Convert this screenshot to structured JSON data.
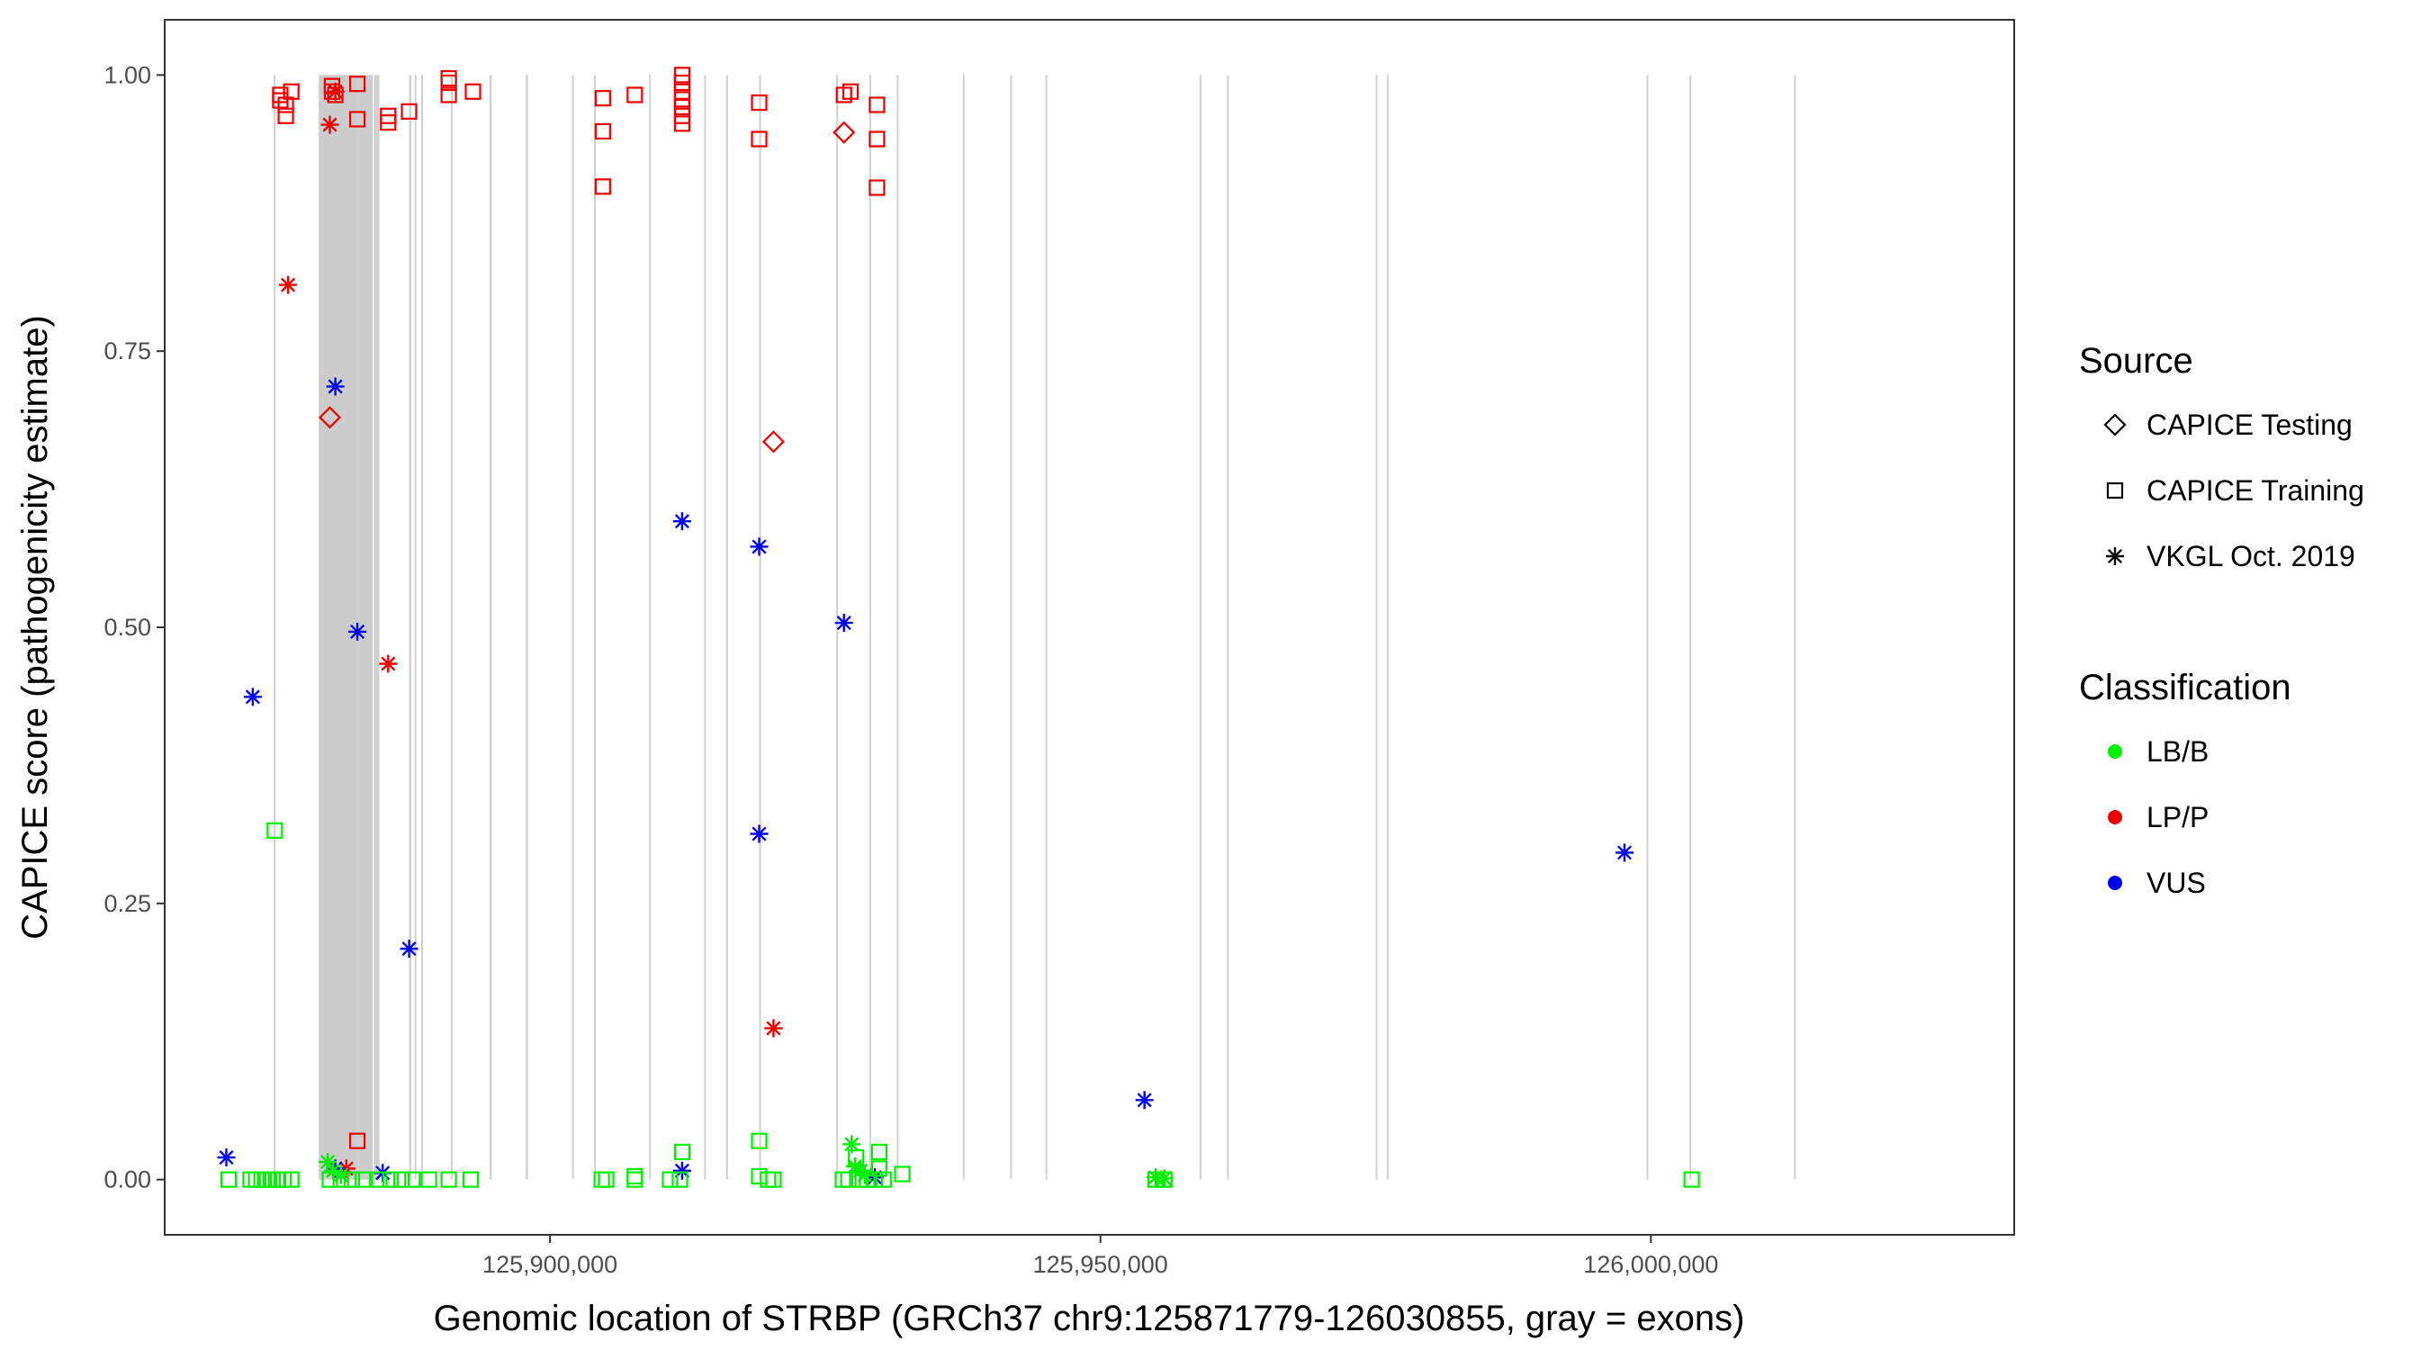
{
  "chart_data": {
    "type": "scatter",
    "title": "",
    "xlabel": "Genomic location of STRBP (GRCh37 chr9:125871779-126030855, gray = exons)",
    "ylabel": "CAPICE score (pathogenicity estimate)",
    "xlim": [
      125865000,
      126033000
    ],
    "ylim": [
      -0.05,
      1.05
    ],
    "x_ticks": [
      125900000,
      125950000,
      126000000
    ],
    "x_tick_labels": [
      "125,900,000",
      "125,950,000",
      "126,000,000"
    ],
    "y_ticks": [
      0,
      0.25,
      0.5,
      0.75,
      1
    ],
    "y_tick_labels": [
      "0.00",
      "0.25",
      "0.50",
      "0.75",
      "1.00"
    ],
    "grid": false,
    "exon_regions": [
      [
        125874900,
        125875000
      ],
      [
        125882500,
        125882700
      ],
      [
        125884000,
        125884500
      ],
      [
        125887200,
        125887400
      ],
      [
        125888300,
        125888400
      ],
      [
        125887700,
        125887800
      ],
      [
        125891000,
        125891100
      ],
      [
        125894500,
        125894700
      ],
      [
        125897800,
        125898000
      ],
      [
        125902000,
        125902100
      ],
      [
        125904000,
        125904100
      ],
      [
        125909000,
        125909100
      ],
      [
        125914000,
        125914100
      ],
      [
        125916000,
        125916100
      ],
      [
        125919000,
        125919100
      ],
      [
        125926000,
        125926100
      ],
      [
        125929000,
        125929100
      ],
      [
        125931500,
        125931600
      ],
      [
        125937500,
        125937600
      ],
      [
        125941800,
        125941900
      ],
      [
        125945000,
        125945100
      ],
      [
        125959000,
        125959100
      ],
      [
        125961500,
        125961600
      ],
      [
        125975000,
        125975100
      ],
      [
        125976000,
        125976100
      ],
      [
        125999600,
        125999700
      ],
      [
        126003500,
        126003600
      ],
      [
        126013000,
        126013100
      ]
    ],
    "highlight_exon": [
      125879000,
      125883900
    ],
    "legend": {
      "position": "right",
      "source_title": "Source",
      "source_entries": [
        {
          "label": "CAPICE Testing",
          "shape": "diamond"
        },
        {
          "label": "CAPICE Training",
          "shape": "square"
        },
        {
          "label": "VKGL Oct. 2019",
          "shape": "asterisk"
        }
      ],
      "class_title": "Classification",
      "class_entries": [
        {
          "label": "LB/B",
          "color": "#00ee00"
        },
        {
          "label": "LP/P",
          "color": "#ee0000"
        },
        {
          "label": "VUS",
          "color": "#0000ee"
        }
      ]
    },
    "colors": {
      "LB/B": "#00ee00",
      "LP/P": "#ee0000",
      "VUS": "#0000ee"
    },
    "series": [
      {
        "source": "CAPICE Training",
        "classification": "LP/P",
        "points": [
          [
            125875500,
            0.977
          ],
          [
            125875500,
            0.982
          ],
          [
            125876000,
            0.973
          ],
          [
            125876000,
            0.963
          ],
          [
            125876500,
            0.985
          ],
          [
            125880200,
            0.985
          ],
          [
            125880200,
            0.99
          ],
          [
            125880500,
            0.982
          ],
          [
            125882500,
            0.992
          ],
          [
            125882500,
            0.96
          ],
          [
            125885300,
            0.957
          ],
          [
            125885300,
            0.963
          ],
          [
            125887200,
            0.967
          ],
          [
            125890800,
            0.997
          ],
          [
            125890800,
            0.993
          ],
          [
            125890800,
            0.982
          ],
          [
            125893000,
            0.985
          ],
          [
            125904800,
            0.979
          ],
          [
            125904800,
            0.949
          ],
          [
            125904800,
            0.899
          ],
          [
            125907700,
            0.982
          ],
          [
            125912000,
            1.0
          ],
          [
            125912000,
            0.993
          ],
          [
            125912000,
            0.985
          ],
          [
            125912000,
            0.978
          ],
          [
            125912000,
            0.971
          ],
          [
            125912000,
            0.963
          ],
          [
            125912000,
            0.956
          ],
          [
            125919000,
            0.975
          ],
          [
            125919000,
            0.942
          ],
          [
            125926700,
            0.982
          ],
          [
            125927300,
            0.985
          ],
          [
            125929700,
            0.973
          ],
          [
            125929700,
            0.942
          ],
          [
            125929700,
            0.898
          ],
          [
            125882500,
            0.035
          ]
        ]
      },
      {
        "source": "CAPICE Testing",
        "classification": "LP/P",
        "points": [
          [
            125926700,
            0.948
          ],
          [
            125880000,
            0.69
          ],
          [
            125920300,
            0.668
          ]
        ]
      },
      {
        "source": "VKGL Oct. 2019",
        "classification": "LP/P",
        "points": [
          [
            125880500,
            0.985
          ],
          [
            125880000,
            0.955
          ],
          [
            125876200,
            0.81
          ],
          [
            125885300,
            0.467
          ],
          [
            125920300,
            0.137
          ],
          [
            125881500,
            0.01
          ]
        ]
      },
      {
        "source": "VKGL Oct. 2019",
        "classification": "VUS",
        "points": [
          [
            125880500,
            0.718
          ],
          [
            125882500,
            0.496
          ],
          [
            125873000,
            0.437
          ],
          [
            125887200,
            0.209
          ],
          [
            125912000,
            0.596
          ],
          [
            125919000,
            0.573
          ],
          [
            125926700,
            0.504
          ],
          [
            125919000,
            0.313
          ],
          [
            125954000,
            0.072
          ],
          [
            125997600,
            0.296
          ],
          [
            125870600,
            0.02
          ],
          [
            125880500,
            0.01
          ],
          [
            125884800,
            0.006
          ],
          [
            125912000,
            0.008
          ],
          [
            125929500,
            0.002
          ]
        ]
      },
      {
        "source": "VKGL Oct. 2019",
        "classification": "LB/B",
        "points": [
          [
            125879800,
            0.016
          ],
          [
            125880300,
            0.008
          ],
          [
            125881000,
            0.004
          ],
          [
            125927400,
            0.032
          ],
          [
            125927700,
            0.012
          ],
          [
            125928200,
            0.008
          ],
          [
            125928600,
            0.004
          ],
          [
            125955000,
            0.002
          ],
          [
            125955800,
            0.001
          ]
        ]
      },
      {
        "source": "CAPICE Training",
        "classification": "LB/B",
        "points": [
          [
            125875000,
            0.316
          ],
          [
            125912000,
            0.025
          ],
          [
            125919000,
            0.035
          ],
          [
            125927800,
            0.02
          ],
          [
            125929900,
            0.025
          ],
          [
            125929900,
            0.01
          ],
          [
            125870800,
            0.0
          ],
          [
            125872800,
            0.0
          ],
          [
            125873300,
            0.0
          ],
          [
            125873800,
            0.0
          ],
          [
            125874300,
            0.0
          ],
          [
            125874800,
            0.0
          ],
          [
            125875300,
            0.0
          ],
          [
            125875800,
            0.0
          ],
          [
            125876500,
            0.0
          ],
          [
            125880000,
            0.0
          ],
          [
            125881000,
            0.0
          ],
          [
            125882000,
            0.0
          ],
          [
            125883000,
            0.0
          ],
          [
            125884500,
            0.0
          ],
          [
            125885500,
            0.0
          ],
          [
            125886500,
            0.0
          ],
          [
            125887500,
            0.0
          ],
          [
            125889000,
            0.0
          ],
          [
            125890800,
            0.0
          ],
          [
            125892800,
            0.0
          ],
          [
            125904700,
            0.0
          ],
          [
            125905100,
            0.0
          ],
          [
            125907700,
            0.0
          ],
          [
            125907700,
            0.003
          ],
          [
            125910900,
            0.0
          ],
          [
            125911800,
            0.0
          ],
          [
            125919000,
            0.003
          ],
          [
            125919800,
            0.0
          ],
          [
            125920300,
            0.0
          ],
          [
            125926600,
            0.0
          ],
          [
            125927100,
            0.0
          ],
          [
            125928100,
            0.0
          ],
          [
            125928800,
            0.0
          ],
          [
            125929500,
            0.0
          ],
          [
            125930300,
            0.0
          ],
          [
            125932000,
            0.005
          ],
          [
            125955000,
            0.0
          ],
          [
            125955800,
            0.0
          ],
          [
            126003700,
            0.0
          ]
        ]
      }
    ]
  }
}
